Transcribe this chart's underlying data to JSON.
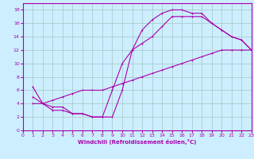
{
  "xlabel": "Windchill (Refroidissement éolien,°C)",
  "bg_color": "#cceeff",
  "grid_color": "#aacccc",
  "line_color": "#aa00aa",
  "xlim": [
    0,
    23
  ],
  "ylim": [
    0,
    19
  ],
  "xticks": [
    0,
    1,
    2,
    3,
    4,
    5,
    6,
    7,
    8,
    9,
    10,
    11,
    12,
    13,
    14,
    15,
    16,
    17,
    18,
    19,
    20,
    21,
    22,
    23
  ],
  "yticks": [
    0,
    2,
    4,
    6,
    8,
    10,
    12,
    14,
    16,
    18
  ],
  "curve1_x": [
    1,
    2,
    3,
    4,
    5,
    6,
    7,
    8,
    9,
    10,
    11,
    12,
    13,
    14,
    15,
    16,
    17,
    18,
    19,
    20,
    21,
    22,
    23
  ],
  "curve1_y": [
    5,
    4,
    3,
    3,
    2.5,
    2.5,
    2,
    2,
    2,
    6,
    12,
    15,
    16.5,
    17.5,
    18,
    18,
    17.5,
    17.5,
    16,
    15,
    14,
    13.5,
    12
  ],
  "curve2_x": [
    1,
    2,
    3,
    4,
    5,
    6,
    7,
    8,
    9,
    10,
    11,
    12,
    13,
    14,
    15,
    16,
    17,
    18,
    19,
    20,
    21,
    22,
    23
  ],
  "curve2_y": [
    6.5,
    4,
    3.5,
    3.5,
    2.5,
    2.5,
    2,
    2,
    6,
    10,
    12,
    13,
    14,
    15.5,
    17,
    17,
    17,
    17,
    16,
    15,
    14,
    13.5,
    12
  ],
  "curve3_x": [
    1,
    2,
    3,
    4,
    5,
    6,
    7,
    8,
    9,
    10,
    11,
    12,
    13,
    14,
    15,
    16,
    17,
    18,
    19,
    20,
    21,
    22,
    23
  ],
  "curve3_y": [
    4,
    4,
    4.5,
    5,
    5.5,
    6,
    6,
    6,
    6.5,
    7,
    7.5,
    8,
    8.5,
    9,
    9.5,
    10,
    10.5,
    11,
    11.5,
    12,
    12,
    12,
    12
  ]
}
